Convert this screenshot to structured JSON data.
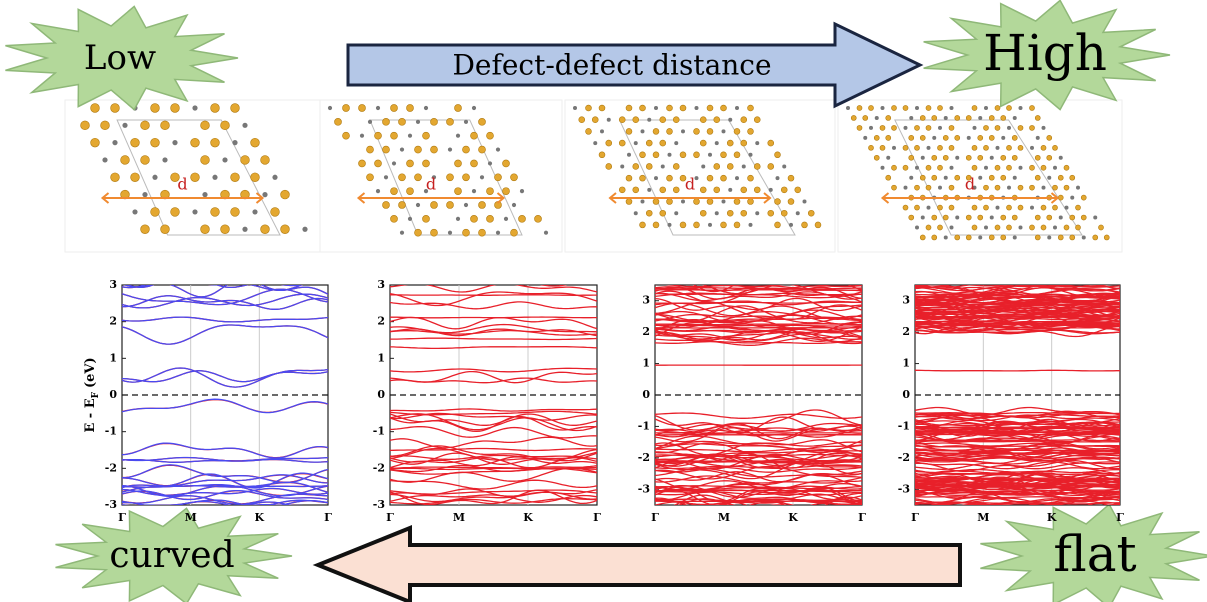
{
  "header": {
    "left_label": "Low",
    "right_label": "High",
    "arrow_label": "Defect-defect distance"
  },
  "structures": [
    {
      "label": "d"
    },
    {
      "label": "d"
    },
    {
      "label": "d"
    },
    {
      "label": "d"
    }
  ],
  "bands": {
    "y_label_main": "E - E",
    "y_label_sub": "F",
    "y_label_unit": "(eV)",
    "panels": [
      {
        "ylim": [
          -3,
          3
        ],
        "yticks": [
          -3,
          -2,
          -1,
          0,
          1,
          2,
          3
        ],
        "xticks": [
          "Γ",
          "M",
          "K",
          "Γ"
        ],
        "fermi_level": 0,
        "colors": [
          "#e8202a",
          "#4a4af0"
        ]
      },
      {
        "ylim": [
          -3,
          3
        ],
        "yticks": [
          -3,
          -2,
          -1,
          0,
          1,
          2,
          3
        ],
        "xticks": [
          "Γ",
          "M",
          "K",
          "Γ"
        ],
        "fermi_level": 0,
        "colors": [
          "#e8202a"
        ]
      },
      {
        "ylim": [
          -3.5,
          3.5
        ],
        "yticks": [
          -3,
          -2,
          -1,
          0,
          1,
          2,
          3
        ],
        "xticks": [
          "Γ",
          "M",
          "K",
          "Γ"
        ],
        "fermi_level": 0,
        "colors": [
          "#e8202a"
        ]
      },
      {
        "ylim": [
          -3.5,
          3.5
        ],
        "yticks": [
          -3,
          -2,
          -1,
          0,
          1,
          2,
          3
        ],
        "xticks": [
          "Γ",
          "M",
          "K",
          "Γ"
        ],
        "fermi_level": 0,
        "colors": [
          "#e8202a"
        ]
      }
    ]
  },
  "footer": {
    "left_label": "curved",
    "right_label": "flat"
  }
}
